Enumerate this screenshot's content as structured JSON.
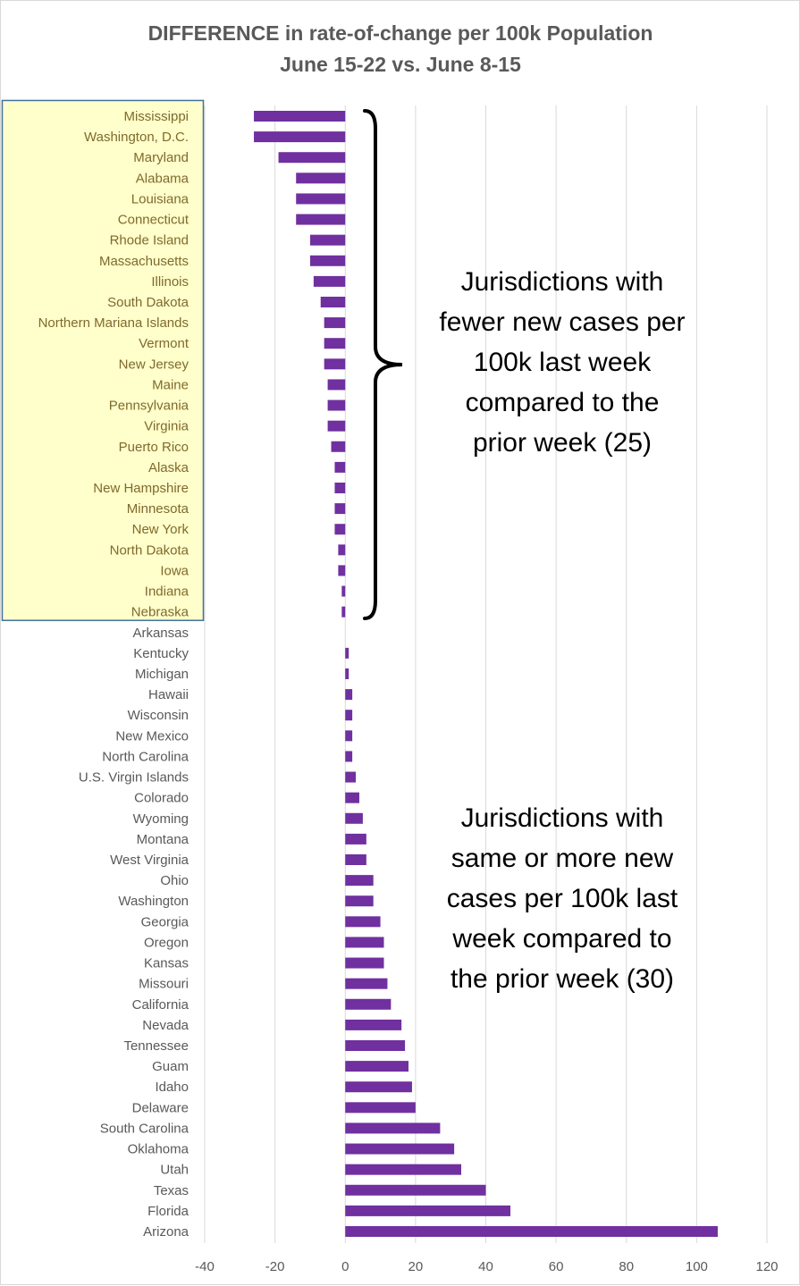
{
  "chart_data": {
    "type": "bar",
    "orientation": "horizontal",
    "title": "DIFFERENCE in rate-of-change per 100k Population",
    "subtitle": "June 15-22 vs. June 8-15",
    "categories": [
      "Mississippi",
      "Washington, D.C.",
      "Maryland",
      "Alabama",
      "Louisiana",
      "Connecticut",
      "Rhode Island",
      "Massachusetts",
      "Illinois",
      "South Dakota",
      "Northern Mariana Islands",
      "Vermont",
      "New Jersey",
      "Maine",
      "Pennsylvania",
      "Virginia",
      "Puerto Rico",
      "Alaska",
      "New Hampshire",
      "Minnesota",
      "New York",
      "North Dakota",
      "Iowa",
      "Indiana",
      "Nebraska",
      "Arkansas",
      "Kentucky",
      "Michigan",
      "Hawaii",
      "Wisconsin",
      "New Mexico",
      "North Carolina",
      "U.S. Virgin Islands",
      "Colorado",
      "Wyoming",
      "Montana",
      "West Virginia",
      "Ohio",
      "Washington",
      "Georgia",
      "Oregon",
      "Kansas",
      "Missouri",
      "California",
      "Nevada",
      "Tennessee",
      "Guam",
      "Idaho",
      "Delaware",
      "South Carolina",
      "Oklahoma",
      "Utah",
      "Texas",
      "Florida",
      "Arizona"
    ],
    "values": [
      -26,
      -26,
      -19,
      -14,
      -14,
      -14,
      -10,
      -10,
      -9,
      -7,
      -6,
      -6,
      -6,
      -5,
      -5,
      -5,
      -4,
      -3,
      -3,
      -3,
      -3,
      -2,
      -2,
      -1,
      -1,
      0,
      1,
      1,
      2,
      2,
      2,
      2,
      3,
      4,
      5,
      6,
      6,
      8,
      8,
      10,
      11,
      11,
      12,
      13,
      16,
      17,
      18,
      19,
      20,
      27,
      31,
      33,
      40,
      47,
      106
    ],
    "xlim": [
      -40,
      120
    ],
    "xticks": [
      -40,
      -20,
      0,
      20,
      40,
      60,
      80,
      100,
      120
    ],
    "grid": "vertical",
    "bar_color": "#7030a0",
    "highlight_count": 25,
    "highlight_fill": "#ffffcc",
    "highlight_border": "#41719c",
    "annotations": [
      {
        "lines": [
          "Jurisdictions with",
          "fewer new cases per",
          "100k last week",
          "compared to the",
          "prior week (25)"
        ]
      },
      {
        "lines": [
          "Jurisdictions with",
          "same or more new",
          "cases per 100k last",
          "week compared to",
          "the prior week (30)"
        ]
      }
    ]
  }
}
